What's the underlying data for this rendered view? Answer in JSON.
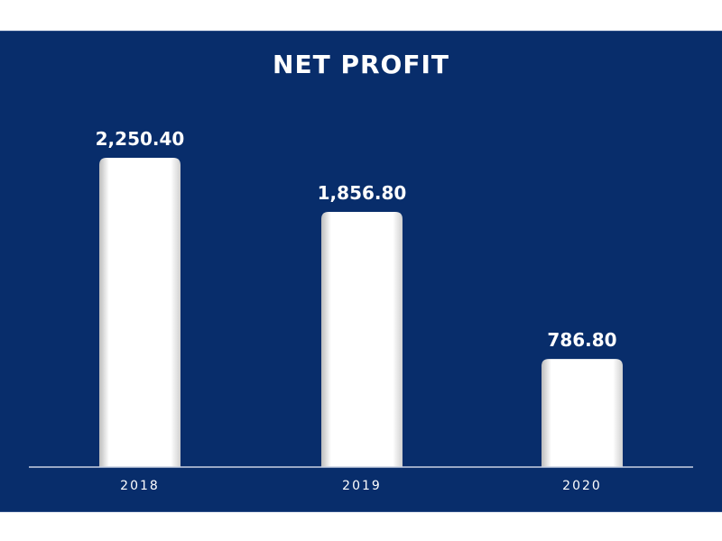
{
  "chart_data": {
    "type": "bar",
    "title": "NET PROFIT",
    "categories": [
      "2018",
      "2019",
      "2020"
    ],
    "values": [
      2250.4,
      1856.8,
      786.8
    ],
    "value_labels": [
      "2,250.40",
      "1,856.80",
      "786.80"
    ],
    "xlabel": "",
    "ylabel": "",
    "ylim": [
      0,
      2500
    ],
    "grid": false,
    "legend": "none",
    "colors": {
      "background": "#082d6b",
      "bar": "#ffffff",
      "bar_shade": "#c8c8c8",
      "axis": "#c9d2e3",
      "text": "#ffffff"
    }
  }
}
